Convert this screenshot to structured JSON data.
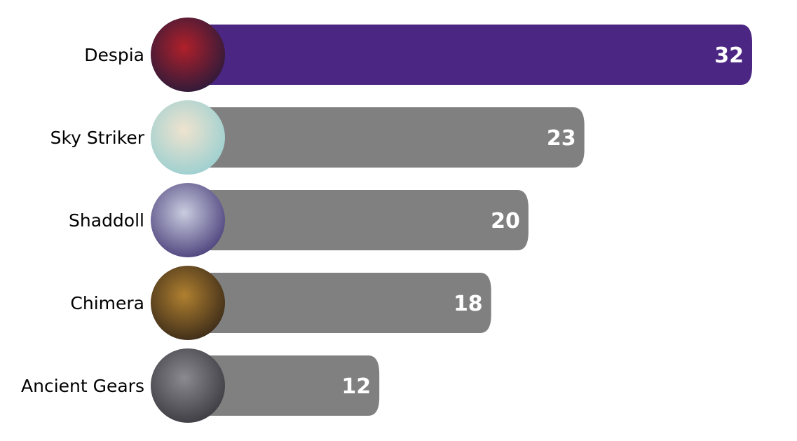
{
  "chart_data": {
    "type": "bar",
    "orientation": "horizontal",
    "categories": [
      "Despia",
      "Sky Striker",
      "Shaddoll",
      "Chimera",
      "Ancient Gears"
    ],
    "values": [
      32,
      23,
      20,
      18,
      12
    ],
    "title": "",
    "xlabel": "",
    "ylabel": "",
    "xlim": [
      0,
      32
    ],
    "grid": false,
    "data_labels": true,
    "highlight_color": "#4b2682",
    "bar_color": "#808080",
    "avatar_colors": [
      [
        "#b0202a",
        "#2a1a3a"
      ],
      [
        "#efe3cf",
        "#9acfd0"
      ],
      [
        "#c9cde0",
        "#4a3f7a"
      ],
      [
        "#b08030",
        "#3a2a18"
      ],
      [
        "#8a8a90",
        "#3a3a40"
      ]
    ]
  }
}
